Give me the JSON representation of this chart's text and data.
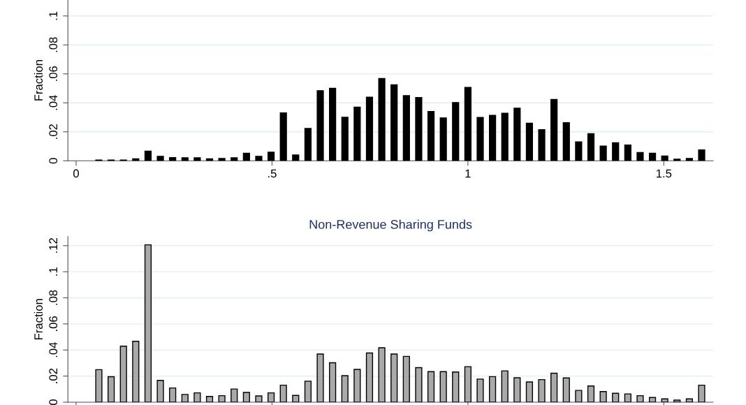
{
  "chart_data": [
    {
      "type": "histogram",
      "ylabel": "Fraction",
      "color": "#000000",
      "bins": [
        0.0423,
        0.0737,
        0.1051,
        0.1365,
        0.1679,
        0.1993,
        0.2307,
        0.2621,
        0.2935,
        0.3249,
        0.3563,
        0.3877,
        0.4191,
        0.4505,
        0.4819,
        0.5133,
        0.5447,
        0.5761,
        0.6075,
        0.6389,
        0.6703,
        0.7017,
        0.7331,
        0.7645,
        0.7959,
        0.8273,
        0.8587,
        0.8901,
        0.9215,
        0.9529,
        0.9843,
        1.0157,
        1.0471,
        1.0785,
        1.1099,
        1.1413,
        1.1727,
        1.2041,
        1.2355,
        1.2669,
        1.2983,
        1.3297,
        1.3611,
        1.3925,
        1.4239,
        1.4553,
        1.4867,
        1.5181,
        1.5495,
        1.5809,
        1.6123
      ],
      "values": [
        0.0005,
        0.0005,
        0.0005,
        0.0014,
        0.0066,
        0.0031,
        0.0022,
        0.0021,
        0.0021,
        0.0014,
        0.0016,
        0.0021,
        0.0052,
        0.0031,
        0.0059,
        0.033,
        0.004,
        0.0223,
        0.0484,
        0.05,
        0.03,
        0.037,
        0.0439,
        0.0568,
        0.0524,
        0.045,
        0.0436,
        0.034,
        0.0296,
        0.0402,
        0.0507,
        0.0299,
        0.0314,
        0.0328,
        0.0363,
        0.0259,
        0.0215,
        0.0423,
        0.0263,
        0.013,
        0.0187,
        0.0102,
        0.0124,
        0.0109,
        0.0057,
        0.0052,
        0.0033,
        0.0011,
        0.0016,
        0.0075
      ],
      "xlim": [
        -0.021,
        1.626
      ],
      "xticks": [
        0,
        {
          "value": 0.5,
          "label": ".5"
        },
        1,
        1.5
      ],
      "ylim": [
        0,
        0.111
      ],
      "yticks": [
        0,
        {
          "value": 0.02,
          "label": ".02"
        },
        {
          "value": 0.04,
          "label": ".04"
        },
        {
          "value": 0.06,
          "label": ".06"
        },
        {
          "value": 0.08,
          "label": ".08"
        },
        {
          "value": 0.1,
          "label": ".1"
        }
      ],
      "grid": "y"
    },
    {
      "type": "histogram",
      "title": "Non-Revenue Sharing Funds",
      "ylabel": "Fraction",
      "color": "#a9a9a9",
      "bins": [
        0.0423,
        0.0737,
        0.1051,
        0.1365,
        0.1679,
        0.1993,
        0.2307,
        0.2621,
        0.2935,
        0.3249,
        0.3563,
        0.3877,
        0.4191,
        0.4505,
        0.4819,
        0.5133,
        0.5447,
        0.5761,
        0.6075,
        0.6389,
        0.6703,
        0.7017,
        0.7331,
        0.7645,
        0.7959,
        0.8273,
        0.8587,
        0.8901,
        0.9215,
        0.9529,
        0.9843,
        1.0157,
        1.0471,
        1.0785,
        1.1099,
        1.1413,
        1.1727,
        1.2041,
        1.2355,
        1.2669,
        1.2983,
        1.3297,
        1.3611,
        1.3925,
        1.4239,
        1.4553,
        1.4867,
        1.5181,
        1.5495,
        1.5809,
        1.6123
      ],
      "values": [
        0.0249,
        0.0195,
        0.0429,
        0.0467,
        0.1206,
        0.0167,
        0.0109,
        0.0059,
        0.0071,
        0.0044,
        0.005,
        0.0101,
        0.0075,
        0.0048,
        0.0071,
        0.013,
        0.0052,
        0.0161,
        0.0369,
        0.0302,
        0.0203,
        0.0251,
        0.0377,
        0.0417,
        0.0369,
        0.0351,
        0.0265,
        0.0234,
        0.0234,
        0.0231,
        0.0272,
        0.0177,
        0.0196,
        0.024,
        0.0187,
        0.0155,
        0.0173,
        0.0222,
        0.0186,
        0.009,
        0.0124,
        0.0081,
        0.0068,
        0.0063,
        0.005,
        0.0036,
        0.0025,
        0.0016,
        0.0025,
        0.013
      ],
      "xlim": [
        -0.021,
        1.626
      ],
      "xticks": [
        {
          "value": 0,
          "label": null
        },
        {
          "value": 0.5,
          "label": null
        },
        {
          "value": 1,
          "label": null
        },
        {
          "value": 1.5,
          "label": null
        }
      ],
      "ylim": [
        0,
        0.127
      ],
      "yticks": [
        0,
        {
          "value": 0.02,
          "label": ".02"
        },
        {
          "value": 0.04,
          "label": ".04"
        },
        {
          "value": 0.06,
          "label": ".06"
        },
        {
          "value": 0.08,
          "label": ".08"
        },
        {
          "value": 0.1,
          "label": ".1"
        },
        {
          "value": 0.12,
          "label": ".12"
        }
      ],
      "grid": "y",
      "tick_labels": "y"
    }
  ]
}
